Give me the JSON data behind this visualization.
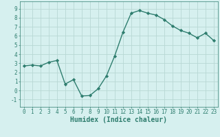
{
  "x": [
    0,
    1,
    2,
    3,
    4,
    5,
    6,
    7,
    8,
    9,
    10,
    11,
    12,
    13,
    14,
    15,
    16,
    17,
    18,
    19,
    20,
    21,
    22,
    23
  ],
  "y": [
    2.7,
    2.8,
    2.7,
    3.1,
    3.3,
    0.7,
    1.2,
    -0.6,
    -0.55,
    0.2,
    1.6,
    3.8,
    6.4,
    8.5,
    8.8,
    8.5,
    8.3,
    7.8,
    7.1,
    6.6,
    6.3,
    5.8,
    6.3,
    5.5
  ],
  "line_color": "#2e7d6e",
  "marker": "D",
  "marker_size": 2.2,
  "bg_color": "#d6f0ef",
  "grid_color": "#b8d8d4",
  "xlabel": "Humidex (Indice chaleur)",
  "xlim": [
    -0.5,
    23.5
  ],
  "ylim": [
    -1.8,
    9.8
  ],
  "yticks": [
    -1,
    0,
    1,
    2,
    3,
    4,
    5,
    6,
    7,
    8,
    9
  ],
  "xticks": [
    0,
    1,
    2,
    3,
    4,
    5,
    6,
    7,
    8,
    9,
    10,
    11,
    12,
    13,
    14,
    15,
    16,
    17,
    18,
    19,
    20,
    21,
    22,
    23
  ],
  "tick_label_fontsize": 5.5,
  "xlabel_fontsize": 7.0,
  "line_width": 1.0
}
